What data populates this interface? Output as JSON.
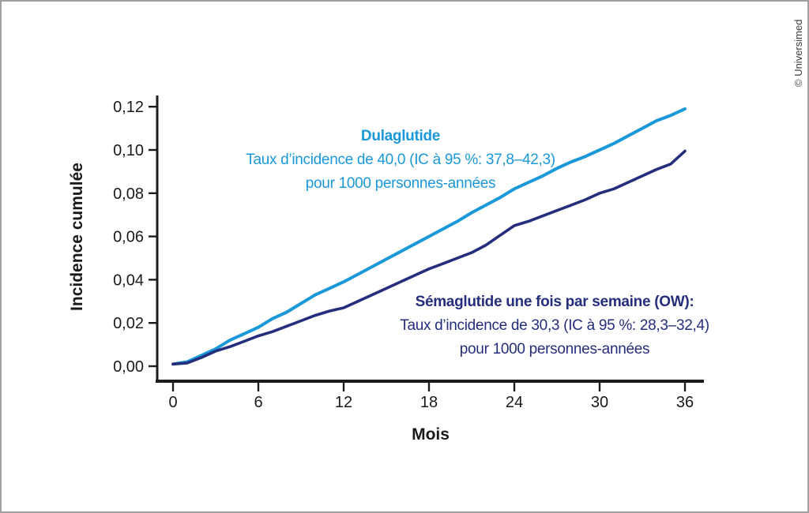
{
  "figure": {
    "credit": "© Universimed"
  },
  "annotations": {
    "dulaglutide": {
      "title": "Dulaglutide",
      "line2": "Taux d’incidence de 40,0 (IC à 95 %: 37,8–42,3)",
      "line3": "pour 1000 personnes-années",
      "color": "#1a98d8"
    },
    "semaglutide": {
      "title": "Sémaglutide une fois par semaine (OW):",
      "line2": "Taux d’incidence de 30,3 (IC à 95 %: 28,3–32,4)",
      "line3": "pour 1000 personnes-années",
      "color": "#252e7c"
    }
  },
  "chart_data": {
    "type": "line",
    "title": "",
    "xlabel": "Mois",
    "ylabel": "Incidence cumulée",
    "xlim": [
      0,
      36
    ],
    "ylim": [
      0,
      0.12
    ],
    "grid": false,
    "legend_position": "none",
    "x_ticks": [
      0,
      6,
      12,
      18,
      24,
      30,
      36
    ],
    "y_tick_values": [
      0,
      0.02,
      0.04,
      0.06,
      0.08,
      0.1,
      0.12
    ],
    "y_tick_labels": [
      "0,00",
      "0,02",
      "0,04",
      "0,06",
      "0,08",
      "0,10",
      "0,12"
    ],
    "x": [
      0,
      1,
      2,
      3,
      4,
      5,
      6,
      7,
      8,
      9,
      10,
      11,
      12,
      13,
      14,
      15,
      16,
      17,
      18,
      19,
      20,
      21,
      22,
      23,
      24,
      25,
      26,
      27,
      28,
      29,
      30,
      31,
      32,
      33,
      34,
      35,
      36
    ],
    "series": [
      {
        "name": "Dulaglutide",
        "color": "#1a98d8",
        "values": [
          0.001,
          0.002,
          0.005,
          0.008,
          0.012,
          0.015,
          0.018,
          0.022,
          0.025,
          0.029,
          0.033,
          0.036,
          0.039,
          0.0425,
          0.046,
          0.0495,
          0.053,
          0.0565,
          0.06,
          0.0635,
          0.067,
          0.071,
          0.0745,
          0.078,
          0.082,
          0.085,
          0.088,
          0.0915,
          0.0945,
          0.097,
          0.1,
          0.103,
          0.1065,
          0.11,
          0.1135,
          0.116,
          0.119
        ]
      },
      {
        "name": "Sémaglutide une fois par semaine (OW)",
        "color": "#252e7c",
        "values": [
          0.001,
          0.0015,
          0.004,
          0.007,
          0.009,
          0.0115,
          0.014,
          0.016,
          0.0185,
          0.021,
          0.0235,
          0.0255,
          0.027,
          0.03,
          0.033,
          0.036,
          0.039,
          0.042,
          0.045,
          0.0475,
          0.05,
          0.0525,
          0.056,
          0.0605,
          0.065,
          0.067,
          0.0695,
          0.072,
          0.0745,
          0.077,
          0.08,
          0.082,
          0.085,
          0.088,
          0.091,
          0.0935,
          0.0995
        ]
      }
    ]
  }
}
